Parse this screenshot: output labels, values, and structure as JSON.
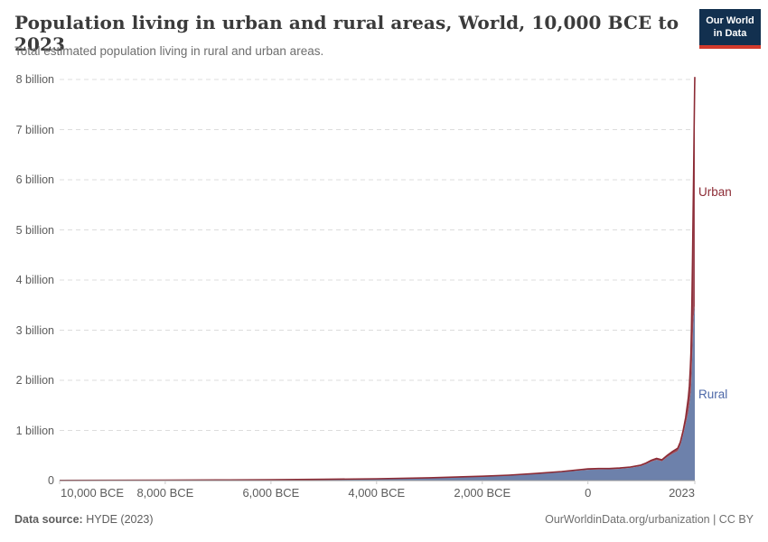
{
  "chart_data": {
    "type": "area",
    "stacked": true,
    "title": "Population living in urban and rural areas, World, 10,000 BCE to 2023",
    "subtitle": "Total estimated population living in rural and urban areas.",
    "xlabel": "",
    "ylabel": "",
    "unit": "billion people",
    "xlim": [
      -10000,
      2023
    ],
    "ylim": [
      0,
      8
    ],
    "grid": "horizontal dashed",
    "legend_position": "end-of-line labels",
    "x": [
      -10000,
      -9000,
      -8000,
      -7000,
      -6000,
      -5000,
      -4000,
      -3000,
      -2000,
      -1500,
      -1000,
      -500,
      -250,
      0,
      200,
      400,
      600,
      800,
      1000,
      1100,
      1200,
      1300,
      1400,
      1500,
      1600,
      1700,
      1750,
      1800,
      1850,
      1900,
      1920,
      1940,
      1950,
      1960,
      1970,
      1980,
      1990,
      2000,
      2010,
      2020,
      2023
    ],
    "series": [
      {
        "name": "Rural",
        "color": "#6D81AB",
        "line_color": "#5F74A3",
        "label_color": "#4D68A8",
        "values": [
          0.004,
          0.006,
          0.008,
          0.012,
          0.017,
          0.025,
          0.035,
          0.054,
          0.084,
          0.105,
          0.134,
          0.171,
          0.195,
          0.215,
          0.223,
          0.225,
          0.235,
          0.254,
          0.289,
          0.328,
          0.379,
          0.413,
          0.386,
          0.468,
          0.535,
          0.59,
          0.705,
          0.91,
          1.13,
          1.37,
          1.53,
          1.7,
          1.79,
          2.03,
          2.35,
          2.7,
          3.04,
          3.27,
          3.34,
          3.48,
          3.44
        ]
      },
      {
        "name": "Urban",
        "color": "#9D4B57",
        "line_color": "#8C2B35",
        "label_color": "#8C2B35",
        "values": [
          0,
          0,
          0,
          0,
          0.0001,
          0.0002,
          0.0005,
          0.001,
          0.003,
          0.004,
          0.006,
          0.009,
          0.013,
          0.017,
          0.017,
          0.015,
          0.015,
          0.016,
          0.019,
          0.022,
          0.026,
          0.029,
          0.028,
          0.035,
          0.045,
          0.055,
          0.065,
          0.08,
          0.13,
          0.28,
          0.36,
          0.57,
          0.75,
          1.0,
          1.35,
          1.75,
          2.29,
          2.87,
          3.62,
          4.36,
          4.61
        ]
      }
    ],
    "y_ticks": [
      {
        "value": 0,
        "label": "0"
      },
      {
        "value": 1,
        "label": "1 billion"
      },
      {
        "value": 2,
        "label": "2 billion"
      },
      {
        "value": 3,
        "label": "3 billion"
      },
      {
        "value": 4,
        "label": "4 billion"
      },
      {
        "value": 5,
        "label": "5 billion"
      },
      {
        "value": 6,
        "label": "6 billion"
      },
      {
        "value": 7,
        "label": "7 billion"
      },
      {
        "value": 8,
        "label": "8 billion"
      }
    ],
    "x_ticks": [
      {
        "value": -10000,
        "label": "10,000 BCE",
        "align": "left"
      },
      {
        "value": -8000,
        "label": "8,000 BCE",
        "align": "center"
      },
      {
        "value": -6000,
        "label": "6,000 BCE",
        "align": "center"
      },
      {
        "value": -4000,
        "label": "4,000 BCE",
        "align": "center"
      },
      {
        "value": -2000,
        "label": "2,000 BCE",
        "align": "center"
      },
      {
        "value": 0,
        "label": "0",
        "align": "center"
      },
      {
        "value": 2023,
        "label": "2023",
        "align": "right"
      }
    ]
  },
  "logo": {
    "line1": "Our World",
    "line2": "in Data",
    "bg_color": "#12304F",
    "accent_color": "#D23A2C"
  },
  "footer": {
    "source_label": "Data source:",
    "source_value": " HYDE (2023)",
    "right_text": "OurWorldinData.org/urbanization | CC BY"
  },
  "style_colors": {
    "gridline": "#dcdcdc",
    "axis_line": "#9a9a9a",
    "tick_mark": "#c8c8c8"
  }
}
